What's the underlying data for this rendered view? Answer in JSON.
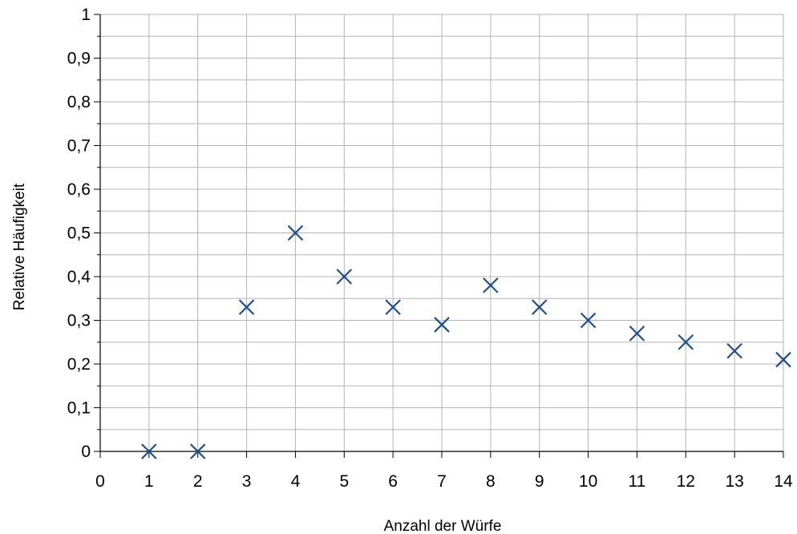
{
  "chart_data": {
    "type": "scatter",
    "title": "",
    "xlabel": "Anzahl der Würfe",
    "ylabel": "Relative Häufigkeit",
    "xlim": [
      0,
      14
    ],
    "ylim": [
      0,
      1
    ],
    "x_ticks": [
      "0",
      "1",
      "2",
      "3",
      "4",
      "5",
      "6",
      "7",
      "8",
      "9",
      "10",
      "11",
      "12",
      "13",
      "14"
    ],
    "y_ticks": [
      "0",
      "0,1",
      "0,2",
      "0,3",
      "0,4",
      "0,5",
      "0,6",
      "0,7",
      "0,8",
      "0,9",
      "1"
    ],
    "grid": true,
    "marker": "x",
    "marker_color": "#1f4e8c",
    "grid_color": "#b3b3b3",
    "x": [
      1,
      2,
      3,
      4,
      5,
      6,
      7,
      8,
      9,
      10,
      11,
      12,
      13,
      14
    ],
    "y": [
      0,
      0,
      0.33,
      0.5,
      0.4,
      0.33,
      0.29,
      0.38,
      0.33,
      0.3,
      0.27,
      0.25,
      0.23,
      0.21
    ]
  }
}
